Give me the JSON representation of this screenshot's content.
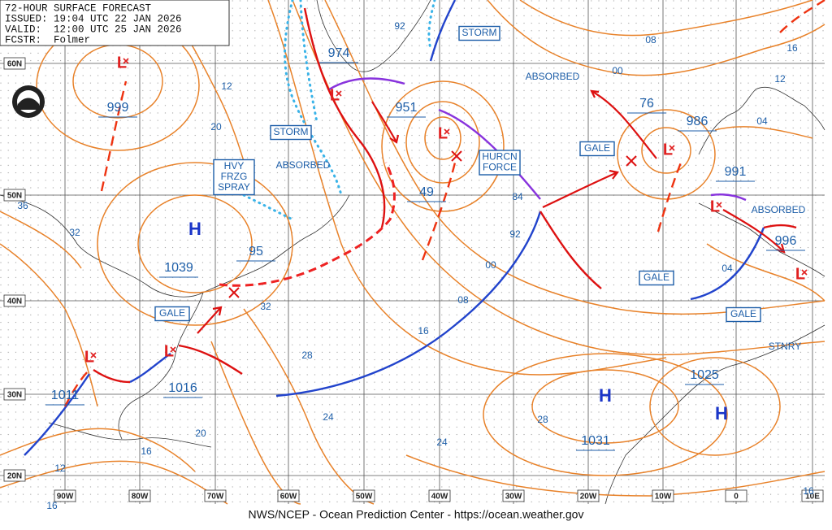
{
  "header": {
    "title": "72-HOUR SURFACE FORECAST",
    "issued": "ISSUED: 19:04 UTC 22 JAN 2026",
    "valid": "VALID:  12:00 UTC 25 JAN 2026",
    "forecaster": "FCSTR:  Folmer"
  },
  "map": {
    "latitude_labels": [
      "60N",
      "50N",
      "40N",
      "30N",
      "20N"
    ],
    "longitude_labels": [
      "90W",
      "80W",
      "70W",
      "60W",
      "50W",
      "40W",
      "30W",
      "20W",
      "10W",
      "0",
      "10E"
    ],
    "pressure_centers": [
      "999",
      "974",
      "951",
      "49",
      "1039",
      "95",
      "1016",
      "1011",
      "76",
      "986",
      "991",
      "996",
      "1025",
      "1031"
    ],
    "isobar_labels": [
      "92",
      "12",
      "20",
      "36",
      "32",
      "32",
      "28",
      "24",
      "20",
      "16",
      "12",
      "16",
      "16",
      "08",
      "00",
      "92",
      "84",
      "24",
      "28",
      "08",
      "00",
      "04",
      "04",
      "16",
      "12",
      "16"
    ],
    "boxed_tags": [
      {
        "lines": [
          "STORM"
        ]
      },
      {
        "lines": [
          "STORM"
        ]
      },
      {
        "lines": [
          "HVY",
          "FRZG",
          "SPRAY"
        ]
      },
      {
        "lines": [
          "HURCN",
          "FORCE"
        ]
      },
      {
        "lines": [
          "GALE"
        ]
      },
      {
        "lines": [
          "GALE"
        ]
      },
      {
        "lines": [
          "GALE"
        ]
      },
      {
        "lines": [
          "GALE"
        ]
      }
    ],
    "plain_tags": [
      "ABSORBED",
      "ABSORBED",
      "ABSORBED",
      "STNRY"
    ],
    "highs": [
      "H",
      "H",
      "H"
    ],
    "lows": [
      "L",
      "L",
      "L",
      "L",
      "L",
      "L",
      "L",
      "L"
    ]
  },
  "footer": "NWS/NCEP - Ocean Prediction Center - https://ocean.weather.gov"
}
